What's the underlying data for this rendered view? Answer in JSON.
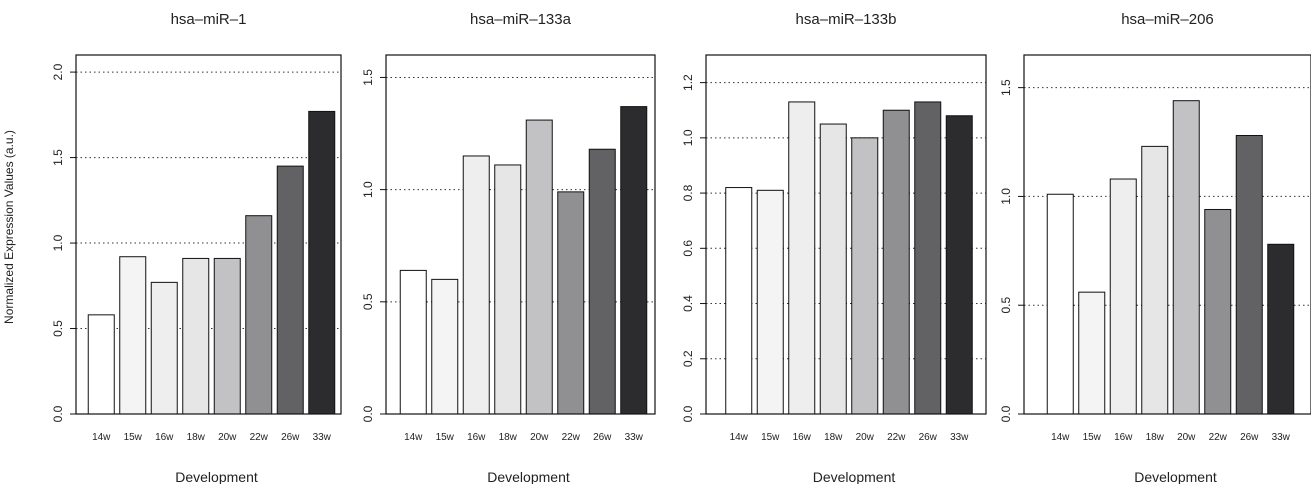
{
  "figure": {
    "ylabel": "Normalized Expression Values (a.u.)"
  },
  "chart_data": [
    {
      "type": "bar",
      "title": "hsa–miR–1",
      "xlabel": "Development",
      "categories": [
        "14w",
        "15w",
        "16w",
        "18w",
        "20w",
        "22w",
        "26w",
        "33w"
      ],
      "values": [
        0.58,
        0.92,
        0.77,
        0.91,
        0.91,
        1.16,
        1.45,
        1.77
      ],
      "colors": [
        "#ffffff",
        "#f4f4f4",
        "#eeeeee",
        "#e6e6e6",
        "#c2c2c4",
        "#909092",
        "#626264",
        "#2c2c2e"
      ],
      "ylim": [
        0,
        2.1
      ],
      "yticks": [
        0.0,
        0.5,
        1.0,
        1.5,
        2.0
      ],
      "ytick_labels": [
        "0.0",
        "0.5",
        "1.0",
        "1.5",
        "2.0"
      ],
      "grid": "dotted horizontal"
    },
    {
      "type": "bar",
      "title": "hsa–miR–133a",
      "xlabel": "Development",
      "categories": [
        "14w",
        "15w",
        "16w",
        "18w",
        "20w",
        "22w",
        "26w",
        "33w"
      ],
      "values": [
        0.64,
        0.6,
        1.15,
        1.11,
        1.31,
        0.99,
        1.18,
        1.37
      ],
      "colors": [
        "#ffffff",
        "#f4f4f4",
        "#eeeeee",
        "#e6e6e6",
        "#c2c2c4",
        "#909092",
        "#626264",
        "#2c2c2e"
      ],
      "ylim": [
        0,
        1.6
      ],
      "yticks": [
        0.0,
        0.5,
        1.0,
        1.5
      ],
      "ytick_labels": [
        "0.0",
        "0.5",
        "1.0",
        "1.5"
      ],
      "grid": "dotted horizontal"
    },
    {
      "type": "bar",
      "title": "hsa–miR–133b",
      "xlabel": "Development",
      "categories": [
        "14w",
        "15w",
        "16w",
        "18w",
        "20w",
        "22w",
        "26w",
        "33w"
      ],
      "values": [
        0.82,
        0.81,
        1.13,
        1.05,
        1.0,
        1.1,
        1.13,
        1.08
      ],
      "colors": [
        "#ffffff",
        "#f4f4f4",
        "#eeeeee",
        "#e6e6e6",
        "#c2c2c4",
        "#909092",
        "#626264",
        "#2c2c2e"
      ],
      "ylim": [
        0,
        1.3
      ],
      "yticks": [
        0.0,
        0.2,
        0.4,
        0.6,
        0.8,
        1.0,
        1.2
      ],
      "ytick_labels": [
        "0.0",
        "0.2",
        "0.4",
        "0.6",
        "0.8",
        "1.0",
        "1.2"
      ],
      "grid": "dotted horizontal"
    },
    {
      "type": "bar",
      "title": "hsa–miR–206",
      "xlabel": "Development",
      "categories": [
        "14w",
        "15w",
        "16w",
        "18w",
        "20w",
        "22w",
        "26w",
        "33w"
      ],
      "values": [
        1.01,
        0.56,
        1.08,
        1.23,
        1.44,
        0.94,
        1.28,
        0.78
      ],
      "colors": [
        "#ffffff",
        "#f4f4f4",
        "#eeeeee",
        "#e6e6e6",
        "#c2c2c4",
        "#909092",
        "#626264",
        "#2c2c2e"
      ],
      "ylim": [
        0,
        1.65
      ],
      "yticks": [
        0.0,
        0.5,
        1.0,
        1.5
      ],
      "ytick_labels": [
        "0.0",
        "0.5",
        "1.0",
        "1.5"
      ],
      "grid": "dotted horizontal"
    }
  ]
}
